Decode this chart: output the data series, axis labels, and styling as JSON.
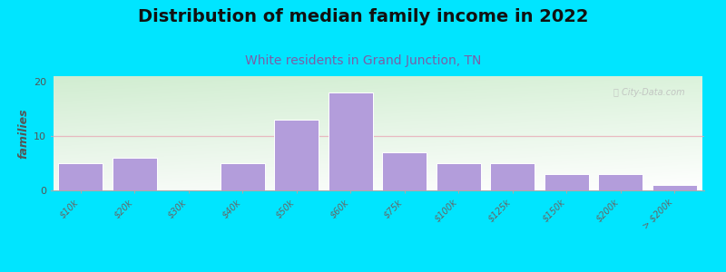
{
  "title": "Distribution of median family income in 2022",
  "subtitle": "White residents in Grand Junction, TN",
  "ylabel": "families",
  "categories": [
    "$10k",
    "$20k",
    "$30k",
    "$40k",
    "$50k",
    "$60k",
    "$75k",
    "$100k",
    "$125k",
    "$150k",
    "$200k",
    "> $200k"
  ],
  "values": [
    5,
    6,
    0,
    5,
    13,
    18,
    7,
    5,
    5,
    3,
    3,
    1
  ],
  "bar_color": "#b39ddb",
  "bar_edge_color": "#ffffff",
  "ylim": [
    0,
    21
  ],
  "yticks": [
    0,
    10,
    20
  ],
  "bg_color_topleft": "#d4edda",
  "bg_color_topright": "#f0f8f0",
  "bg_color_bottom": "#f5fbee",
  "outer_bg": "#00e5ff",
  "grid_color": "#e8a0b0",
  "grid_alpha": 0.7,
  "title_fontsize": 14,
  "subtitle_fontsize": 10,
  "ylabel_fontsize": 9,
  "tick_fontsize": 7,
  "watermark": "City-Data.com",
  "watermark_color": "#bbbbbb"
}
